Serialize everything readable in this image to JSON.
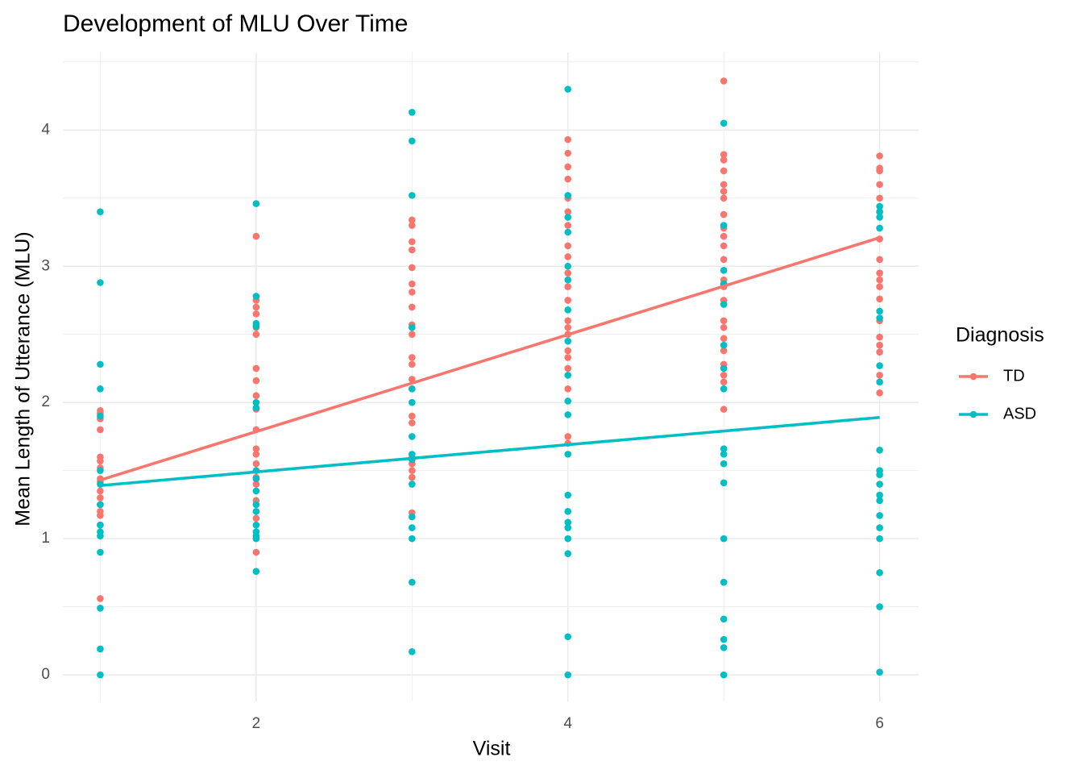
{
  "chart_data": {
    "type": "scatter",
    "title": "Development of MLU Over Time",
    "x_label": "Visit",
    "y_label": "Mean Length of Utterance (MLU)",
    "legend_title": "Diagnosis",
    "legend_position": "right",
    "grid": true,
    "xlim": [
      0.76,
      6.25
    ],
    "ylim": [
      -0.195,
      4.57
    ],
    "xticks": [
      2,
      4,
      6
    ],
    "yticks": [
      0,
      1,
      2,
      3,
      4
    ],
    "series": [
      {
        "name": "TD",
        "color": "#F8766D",
        "x": [
          1,
          1,
          1,
          1,
          1,
          1,
          1,
          1,
          1,
          1,
          1,
          1,
          1,
          1,
          1,
          1,
          2,
          2,
          2,
          2,
          2,
          2,
          2,
          2,
          2,
          2,
          2,
          2,
          2,
          2,
          2,
          2,
          2,
          2,
          2,
          3,
          3,
          3,
          3,
          3,
          3,
          3,
          3,
          3,
          3,
          3,
          3,
          3,
          3,
          3,
          3,
          3,
          3,
          3,
          3,
          3,
          4,
          4,
          4,
          4,
          4,
          4,
          4,
          4,
          4,
          4,
          4,
          4,
          4,
          4,
          4,
          4,
          4,
          4,
          4,
          4,
          4,
          5,
          5,
          5,
          5,
          5,
          5,
          5,
          5,
          5,
          5,
          5,
          5,
          5,
          5,
          5,
          5,
          5,
          5,
          5,
          5,
          5,
          5,
          5,
          6,
          6,
          6,
          6,
          6,
          6,
          6,
          6,
          6,
          6,
          6,
          6,
          6,
          6,
          6,
          6,
          6,
          6
        ],
        "values": [
          1.94,
          1.92,
          1.88,
          1.8,
          1.6,
          1.57,
          1.52,
          1.44,
          1.42,
          1.35,
          1.3,
          1.25,
          1.2,
          1.17,
          1.1,
          0.56,
          3.22,
          2.75,
          2.7,
          2.65,
          2.55,
          2.5,
          2.25,
          2.16,
          2.05,
          1.95,
          1.8,
          1.66,
          1.62,
          1.55,
          1.45,
          1.4,
          1.28,
          1.15,
          0.9,
          3.34,
          3.3,
          3.18,
          3.12,
          2.99,
          2.87,
          2.81,
          2.7,
          2.57,
          2.5,
          2.33,
          2.28,
          2.17,
          2.1,
          1.9,
          1.85,
          1.6,
          1.55,
          1.5,
          1.45,
          1.19,
          3.93,
          3.83,
          3.73,
          3.64,
          3.5,
          3.4,
          3.3,
          3.15,
          3.07,
          2.95,
          2.85,
          2.75,
          2.6,
          2.55,
          2.5,
          2.38,
          2.33,
          2.25,
          2.1,
          1.75,
          1.7,
          4.36,
          3.82,
          3.78,
          3.7,
          3.6,
          3.55,
          3.5,
          3.38,
          3.28,
          3.22,
          3.15,
          3.05,
          2.9,
          2.85,
          2.75,
          2.6,
          2.55,
          2.47,
          2.38,
          2.28,
          2.2,
          2.15,
          1.95,
          3.81,
          3.72,
          3.7,
          3.6,
          3.5,
          3.4,
          3.2,
          3.05,
          2.95,
          2.9,
          2.85,
          2.76,
          2.6,
          2.48,
          2.42,
          2.37,
          2.2,
          2.07
        ],
        "fit": {
          "x": [
            1,
            6
          ],
          "values": [
            1.43,
            3.21
          ]
        }
      },
      {
        "name": "ASD",
        "color": "#00BFC4",
        "x": [
          1,
          1,
          1,
          1,
          1,
          1,
          1,
          1,
          1,
          1,
          1,
          1,
          1,
          1,
          1,
          2,
          2,
          2,
          2,
          2,
          2,
          2,
          2,
          2,
          2,
          2,
          2,
          2,
          2,
          2,
          2,
          3,
          3,
          3,
          3,
          3,
          3,
          3,
          3,
          3,
          3,
          3,
          3,
          3,
          3,
          3,
          4,
          4,
          4,
          4,
          4,
          4,
          4,
          4,
          4,
          4,
          4,
          4,
          4,
          4,
          4,
          4,
          4,
          4,
          4,
          4,
          5,
          5,
          5,
          5,
          5,
          5,
          5,
          5,
          5,
          5,
          5,
          5,
          5,
          5,
          5,
          5,
          5,
          5,
          6,
          6,
          6,
          6,
          6,
          6,
          6,
          6,
          6,
          6,
          6,
          6,
          6,
          6,
          6,
          6,
          6,
          6,
          6,
          6
        ],
        "values": [
          3.4,
          2.88,
          2.28,
          2.1,
          1.9,
          1.5,
          1.4,
          1.25,
          1.1,
          1.05,
          1.02,
          0.9,
          0.49,
          0.19,
          0.0,
          3.46,
          2.78,
          2.58,
          2.56,
          2.0,
          1.96,
          1.5,
          1.44,
          1.35,
          1.25,
          1.2,
          1.1,
          1.05,
          1.02,
          1.0,
          0.76,
          4.13,
          3.92,
          3.52,
          2.55,
          2.1,
          2.0,
          1.75,
          1.62,
          1.58,
          1.4,
          1.16,
          1.08,
          1.0,
          0.68,
          0.17,
          4.3,
          3.52,
          3.36,
          3.25,
          3.0,
          2.9,
          2.68,
          2.45,
          2.2,
          2.01,
          1.91,
          1.62,
          1.32,
          1.2,
          1.12,
          1.08,
          1.0,
          0.89,
          0.28,
          0.0,
          4.05,
          3.3,
          2.97,
          2.87,
          2.72,
          2.42,
          2.25,
          2.1,
          1.66,
          1.62,
          1.55,
          1.41,
          1.0,
          0.68,
          0.41,
          0.26,
          0.2,
          0.0,
          3.44,
          3.4,
          3.36,
          3.28,
          2.67,
          2.62,
          2.27,
          2.15,
          1.65,
          1.5,
          1.47,
          1.4,
          1.32,
          1.28,
          1.17,
          1.08,
          1.0,
          0.75,
          0.5,
          0.02
        ],
        "fit": {
          "x": [
            1,
            6
          ],
          "values": [
            1.39,
            1.89
          ]
        }
      }
    ]
  }
}
